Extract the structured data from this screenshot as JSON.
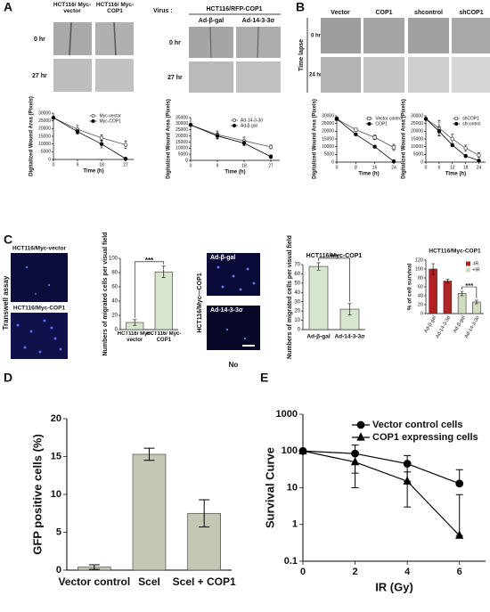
{
  "panels": {
    "A": {
      "letter": "A",
      "left": {
        "headers": [
          "HCT116/ Myc-vector",
          "HCT116/ Myc-COP1"
        ],
        "rows": [
          "0 hr",
          "27 hr"
        ]
      },
      "right": {
        "virus": "Virus :",
        "line": "HCT116/RFP-COP1",
        "headers": [
          "Ad-β-gal",
          "Ad-14-3-3σ"
        ],
        "rows": [
          "0 hr",
          "27 hr"
        ]
      }
    },
    "B": {
      "letter": "B",
      "side": "Time lapse",
      "headers": [
        "Vector",
        "COP1",
        "shcontrol",
        "shCOP1"
      ],
      "rows": [
        "0 hr",
        "24 hr"
      ]
    },
    "C": {
      "letter": "C",
      "side": "Transwell assay",
      "left_labels": [
        "HCT116/Myc-vector",
        "HCT116/Myc-COP1"
      ],
      "mid_side": "HCT116/Myc—COP1",
      "mid_labels": [
        "Ad-β-gal",
        "Ad-14-3-3σ"
      ],
      "note": "No"
    },
    "D": {
      "letter": "D"
    },
    "E": {
      "letter": "E"
    }
  },
  "chart_data": [
    {
      "type": "line",
      "xlabel": "Time (h)",
      "ylabel": "Digitalized Wound Area (Pixels)",
      "x": [
        0,
        9,
        18,
        27
      ],
      "xlim": [
        0,
        30
      ],
      "xticks": [
        0,
        9,
        18,
        27
      ],
      "ylim": [
        0,
        30000
      ],
      "yticks": [
        0,
        5000,
        10000,
        15000,
        20000,
        25000,
        30000
      ],
      "legend": "upper right",
      "series": [
        {
          "name": "Myc-vector",
          "color": "#555555",
          "marker": "circle",
          "filled": false,
          "values": [
            27000,
            19500,
            14000,
            9500
          ],
          "errors": [
            0,
            2500,
            2000,
            2500
          ]
        },
        {
          "name": "Myc-COP1",
          "color": "#000000",
          "marker": "circle",
          "filled": true,
          "values": [
            27000,
            18000,
            10000,
            500
          ],
          "errors": [
            0,
            1500,
            2500,
            500
          ]
        }
      ]
    },
    {
      "type": "line",
      "xlabel": "Time (h)",
      "ylabel": "Digitalized Wound Area (Pixels)",
      "x": [
        0,
        9,
        18,
        27
      ],
      "xlim": [
        0,
        30
      ],
      "xticks": [
        0,
        9,
        18,
        27
      ],
      "ylim": [
        0,
        35000
      ],
      "yticks": [
        0,
        5000,
        10000,
        15000,
        20000,
        25000,
        30000,
        35000
      ],
      "legend": "upper right",
      "series": [
        {
          "name": "Ad-14-3-3σ",
          "color": "#555555",
          "marker": "circle",
          "filled": false,
          "values": [
            29000,
            21000,
            16000,
            11000
          ],
          "errors": [
            0,
            3000,
            3000,
            1500
          ]
        },
        {
          "name": "Ad-β gal",
          "color": "#000000",
          "marker": "circle",
          "filled": true,
          "values": [
            29000,
            20000,
            14000,
            3000
          ],
          "errors": [
            0,
            2500,
            2000,
            1500
          ]
        }
      ]
    },
    {
      "type": "line",
      "xlabel": "Time (h)",
      "ylabel": "Digitalized Wound Area (Pixels)",
      "x": [
        0,
        8,
        16,
        24
      ],
      "xlim": [
        0,
        27
      ],
      "xticks": [
        0,
        8,
        16,
        24
      ],
      "ylim": [
        0,
        30000
      ],
      "yticks": [
        0,
        5000,
        10000,
        15000,
        20000,
        25000,
        30000
      ],
      "legend": "upper right",
      "series": [
        {
          "name": "Vector control",
          "color": "#555555",
          "marker": "square",
          "filled": false,
          "values": [
            28000,
            21000,
            16000,
            9500
          ],
          "errors": [
            0,
            1000,
            1500,
            2000
          ]
        },
        {
          "name": "COP1",
          "color": "#000000",
          "marker": "circle",
          "filled": true,
          "values": [
            28000,
            18000,
            10000,
            500
          ],
          "errors": [
            0,
            800,
            800,
            400
          ]
        }
      ]
    },
    {
      "type": "line",
      "xlabel": "Time (h)",
      "ylabel": "Digitalized Wound Area (Pixels)",
      "x": [
        0,
        6,
        12,
        18,
        24
      ],
      "xlim": [
        0,
        27
      ],
      "xticks": [
        0,
        6,
        12,
        18,
        24
      ],
      "ylim": [
        0,
        30000
      ],
      "yticks": [
        0,
        5000,
        10000,
        15000,
        20000,
        25000,
        30000
      ],
      "legend": "upper right",
      "series": [
        {
          "name": "shCOP1",
          "color": "#555555",
          "marker": "circle",
          "filled": false,
          "values": [
            28000,
            22000,
            15000,
            9000,
            4500
          ],
          "errors": [
            0,
            5000,
            3000,
            2000,
            1500
          ]
        },
        {
          "name": "shcontrol",
          "color": "#000000",
          "marker": "circle",
          "filled": true,
          "values": [
            28000,
            20000,
            11000,
            4000,
            1000
          ],
          "errors": [
            0,
            3000,
            1000,
            1000,
            500
          ]
        }
      ]
    },
    {
      "type": "bar",
      "ylabel": "Numbers of migrated cells per visual field",
      "categories": [
        "HCT116/ Myc-vector",
        "HCT116/ Myc-COP1"
      ],
      "values": [
        10,
        81
      ],
      "errors": [
        4,
        8
      ],
      "color": "#d6e6cc",
      "ylim": [
        0,
        100
      ],
      "yticks": [
        0,
        20,
        40,
        60,
        80,
        100
      ],
      "annotation": "***"
    },
    {
      "type": "bar",
      "title": "HCT116/Myc-COP1",
      "ylabel": "Numbers of migrated cells per visual field",
      "categories": [
        "Ad-β-gal",
        "Ad-14-3-3σ"
      ],
      "values": [
        68,
        22
      ],
      "errors": [
        4,
        6
      ],
      "color": "#d6e6cc",
      "ylim": [
        0,
        70
      ],
      "yticks": [
        0,
        10,
        20,
        30,
        40,
        50,
        60,
        70
      ],
      "annotation": "***"
    },
    {
      "type": "bar",
      "title": "HCT116/Myc-COP1",
      "ylabel": "% of cell survival",
      "categories": [
        "Ad-β-gal",
        "Ad-14-3-3σ",
        "Ad-β-gal",
        "Ad-14-3-3σ"
      ],
      "series": [
        {
          "name": "-IR",
          "color": "#b22222",
          "values": [
            100,
            73,
            null,
            null
          ],
          "errors": [
            12,
            4,
            null,
            null
          ]
        },
        {
          "name": "+IR",
          "color": "#cfdcc0",
          "values": [
            null,
            null,
            45,
            26
          ],
          "errors": [
            null,
            null,
            5,
            4
          ]
        }
      ],
      "ylim": [
        0,
        120
      ],
      "yticks": [
        0,
        20,
        40,
        60,
        80,
        100,
        120
      ],
      "legend": "upper right",
      "annotation": "***"
    },
    {
      "type": "bar",
      "ylabel": "GFP positive cells (%)",
      "categories": [
        "Vector control",
        "SceI",
        "SceI + COP1"
      ],
      "values": [
        0.4,
        15.3,
        7.5
      ],
      "errors": [
        0.3,
        0.8,
        1.8
      ],
      "color": "#c6c6b4",
      "ylim": [
        0,
        20
      ],
      "yticks": [
        0,
        5,
        10,
        15,
        20
      ]
    },
    {
      "type": "line",
      "xlabel": "IR (Gy)",
      "ylabel": "Survival Curve",
      "yscale": "log",
      "x": [
        0,
        2,
        4,
        6
      ],
      "xlim": [
        0,
        7
      ],
      "xticks": [
        0,
        2,
        4,
        6
      ],
      "ylim": [
        0.1,
        1000
      ],
      "yticks": [
        0.1,
        1,
        10,
        100,
        1000
      ],
      "legend": "upper right",
      "series": [
        {
          "name": "Vector control cells",
          "color": "#000000",
          "marker": "circle",
          "filled": true,
          "values": [
            100,
            85,
            45,
            13
          ],
          "errors": [
            0,
            60,
            30,
            18
          ]
        },
        {
          "name": "COP1 expressing cells",
          "color": "#000000",
          "marker": "triangle",
          "filled": true,
          "values": [
            100,
            50,
            15,
            0.5
          ],
          "errors": [
            0,
            40,
            12,
            6
          ]
        }
      ]
    }
  ]
}
